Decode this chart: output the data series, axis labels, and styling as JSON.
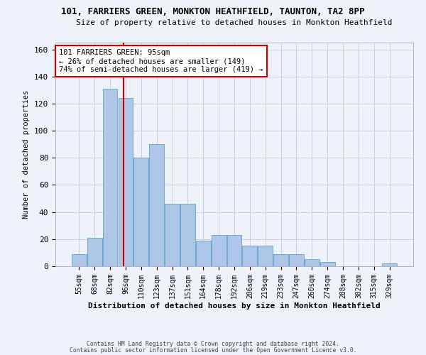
{
  "title1": "101, FARRIERS GREEN, MONKTON HEATHFIELD, TAUNTON, TA2 8PP",
  "title2": "Size of property relative to detached houses in Monkton Heathfield",
  "xlabel": "Distribution of detached houses by size in Monkton Heathfield",
  "ylabel": "Number of detached properties",
  "footer1": "Contains HM Land Registry data © Crown copyright and database right 2024.",
  "footer2": "Contains public sector information licensed under the Open Government Licence v3.0.",
  "bar_labels": [
    "55sqm",
    "68sqm",
    "82sqm",
    "96sqm",
    "110sqm",
    "123sqm",
    "137sqm",
    "151sqm",
    "164sqm",
    "178sqm",
    "192sqm",
    "206sqm",
    "219sqm",
    "233sqm",
    "247sqm",
    "260sqm",
    "274sqm",
    "288sqm",
    "302sqm",
    "315sqm",
    "329sqm"
  ],
  "bar_values": [
    9,
    21,
    131,
    124,
    80,
    90,
    46,
    46,
    19,
    23,
    23,
    15,
    15,
    9,
    9,
    5,
    3,
    0,
    0,
    0,
    2
  ],
  "bar_color": "#aec6e8",
  "bar_edge_color": "#6fa8d4",
  "grid_color": "#c8d0e0",
  "bg_color": "#eef2fb",
  "red_line_x": 2.87,
  "annotation_text": "101 FARRIERS GREEN: 95sqm\n← 26% of detached houses are smaller (149)\n74% of semi-detached houses are larger (419) →",
  "annotation_box_color": "white",
  "annotation_edge_color": "#cc0000",
  "ylim": [
    0,
    165
  ],
  "yticks": [
    0,
    20,
    40,
    60,
    80,
    100,
    120,
    140,
    160
  ]
}
